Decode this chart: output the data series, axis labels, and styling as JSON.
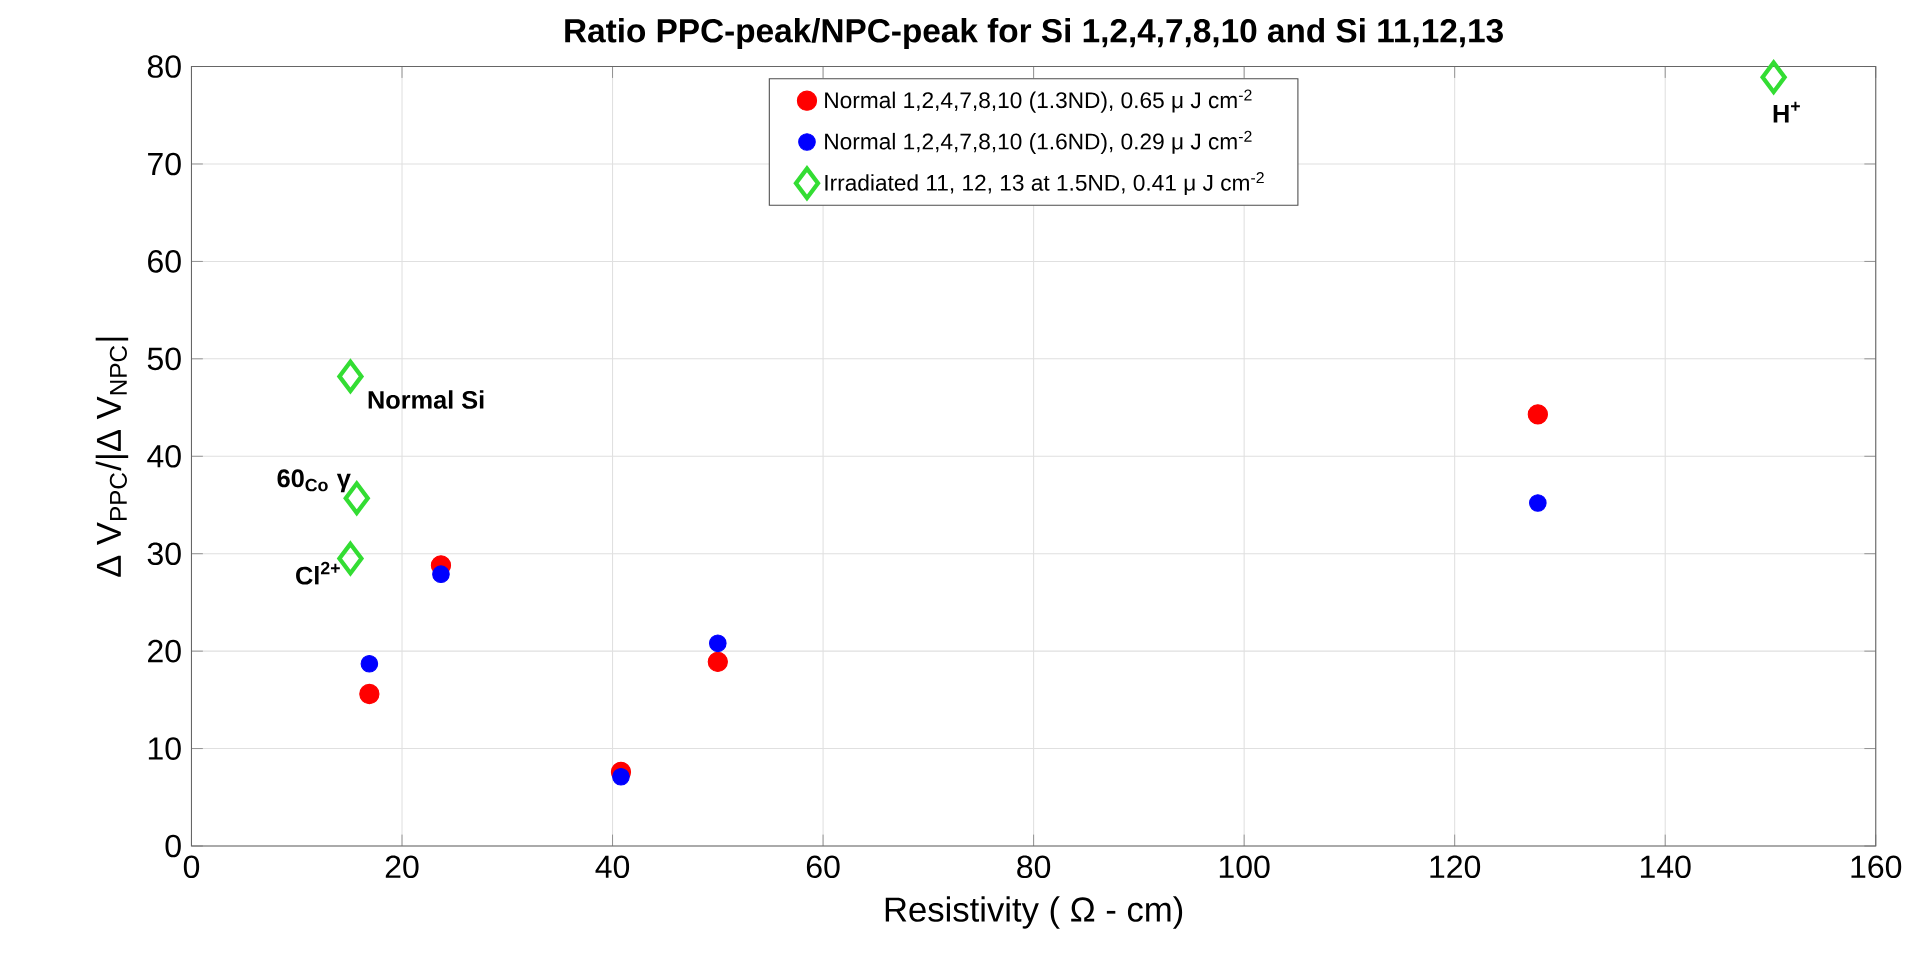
{
  "chart_data": {
    "type": "scatter",
    "title": "Ratio PPC-peak/NPC-peak for Si 1,2,4,7,8,10 and Si 11,12,13",
    "xlabel": "Resistivity ( Ω - cm)",
    "ylabel": "Δ V$_{PPC}$/|Δ V$_{NPC}$|",
    "xlim": [
      0,
      160
    ],
    "xticks": [
      0,
      20,
      40,
      60,
      80,
      100,
      120,
      140,
      160
    ],
    "ylim": [
      0,
      80
    ],
    "yticks": [
      0,
      10,
      20,
      30,
      40,
      50,
      60,
      70,
      80
    ],
    "grid": true,
    "legend": "top",
    "series": [
      {
        "name": "Normal 1,2,4,7,8,10 (1.3ND), 0.65 μ J cm$^{-2}$",
        "color": "#ff0000",
        "marker": "circle",
        "x": [
          16.9,
          23.7,
          40.8,
          50.0,
          127.9
        ],
        "values": [
          15.6,
          28.8,
          7.6,
          18.9,
          44.3
        ]
      },
      {
        "name": "Normal 1,2,4,7,8,10 (1.6ND), 0.29 μ J cm$^{-2}$",
        "color": "#0000ff",
        "marker": "circle",
        "x": [
          16.9,
          23.7,
          40.8,
          50.0,
          127.9
        ],
        "values": [
          18.7,
          27.9,
          7.1,
          20.8,
          35.2
        ]
      },
      {
        "name": "Irradiated 11, 12, 13 at 1.5ND, 0.41 μ J cm$^{-2}$",
        "color": "#33dd33",
        "marker": "diamond",
        "x": [
          15.1,
          15.7,
          15.1,
          150.3
        ],
        "values": [
          48.2,
          35.7,
          29.5,
          78.9
        ]
      }
    ],
    "annotations": [
      {
        "text": "Normal Si",
        "x": 15.1,
        "y": 48.2
      },
      {
        "text": "60$_{Co}$ γ",
        "x": 15.7,
        "y": 35.7
      },
      {
        "text": "Cl$^{2+}$",
        "x": 15.1,
        "y": 29.5
      },
      {
        "text": "H$^{+}$",
        "x": 150.3,
        "y": 78.9
      }
    ]
  }
}
